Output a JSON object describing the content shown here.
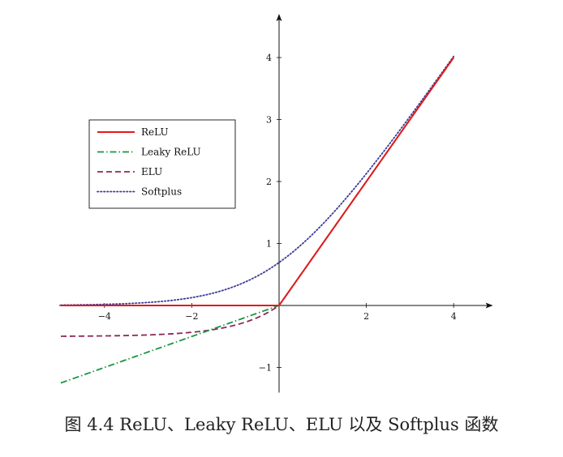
{
  "chart_data": {
    "type": "line",
    "xlim": [
      -5,
      4.9
    ],
    "ylim": [
      -1.3,
      4.6
    ],
    "xticks": [
      -4,
      -2,
      2,
      4
    ],
    "xtick_labels": [
      "−4",
      "−2",
      "2",
      "4"
    ],
    "yticks": [
      -1,
      1,
      2,
      3,
      4
    ],
    "ytick_labels": [
      "−1",
      "1",
      "2",
      "3",
      "4"
    ],
    "legend_position": "upper-left",
    "series": [
      {
        "name": "ReLU",
        "color": "#e31a1c",
        "dash": "solid",
        "function": "relu",
        "domain": [
          -5,
          4
        ]
      },
      {
        "name": "Leaky ReLU",
        "color": "#1a9641",
        "dash": "dashdot",
        "function": "leaky_relu",
        "alpha": 0.25,
        "domain": [
          -5,
          4
        ]
      },
      {
        "name": "ELU",
        "color": "#8e2957",
        "dash": "dashed",
        "function": "elu",
        "alpha": 0.5,
        "domain": [
          -5,
          4
        ]
      },
      {
        "name": "Softplus",
        "color": "#3b3b98",
        "dash": "dotted",
        "function": "softplus",
        "domain": [
          -5,
          4
        ]
      }
    ]
  },
  "caption": "图 4.4 ReLU、Leaky ReLU、ELU 以及 Softplus 函数"
}
